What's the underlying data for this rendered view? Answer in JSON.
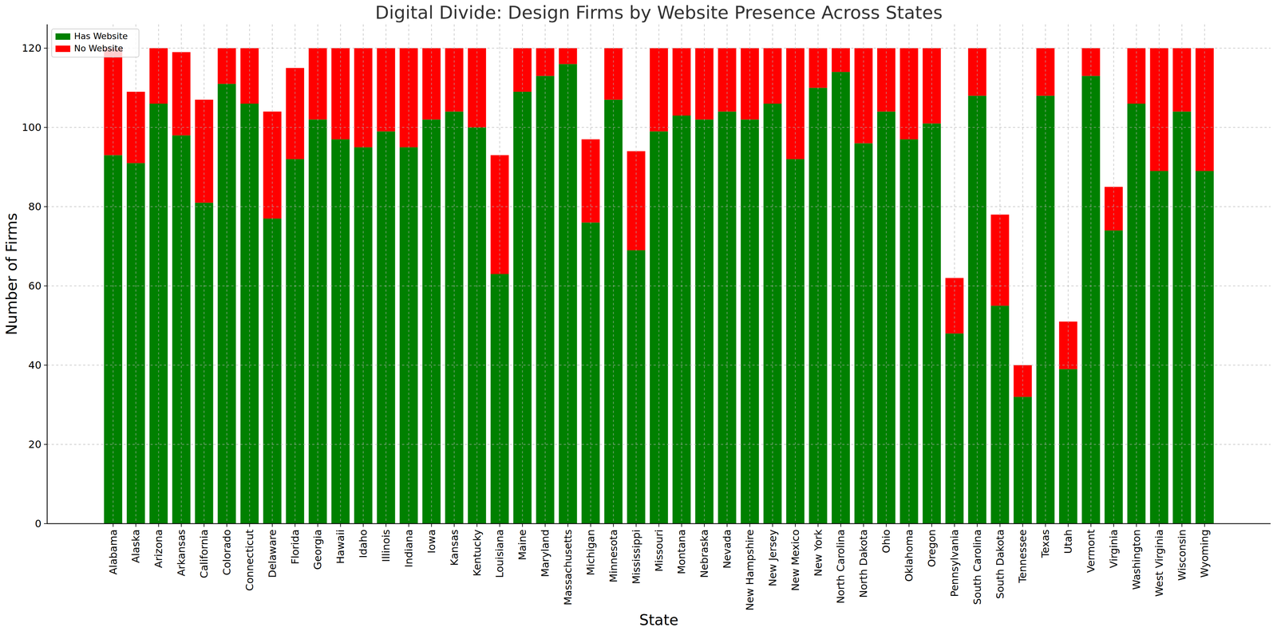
{
  "chart_data": {
    "type": "bar",
    "title": "Digital Divide: Design Firms by Website Presence Across States",
    "x_label": "State",
    "y_label": "Number of Firms",
    "stacked": true,
    "grid": true,
    "legend": "upper left",
    "ylim": [
      0,
      126
    ],
    "yticks": [
      0,
      20,
      40,
      60,
      80,
      100,
      120
    ],
    "categories": [
      "Alabama",
      "Alaska",
      "Arizona",
      "Arkansas",
      "California",
      "Colorado",
      "Connecticut",
      "Delaware",
      "Florida",
      "Georgia",
      "Hawaii",
      "Idaho",
      "Illinois",
      "Indiana",
      "Iowa",
      "Kansas",
      "Kentucky",
      "Louisiana",
      "Maine",
      "Maryland",
      "Massachusetts",
      "Michigan",
      "Minnesota",
      "Mississippi",
      "Missouri",
      "Montana",
      "Nebraska",
      "Nevada",
      "New Hampshire",
      "New Jersey",
      "New Mexico",
      "New York",
      "North Carolina",
      "North Dakota",
      "Ohio",
      "Oklahoma",
      "Oregon",
      "Pennsylvania",
      "South Carolina",
      "South Dakota",
      "Tennessee",
      "Texas",
      "Utah",
      "Vermont",
      "Virginia",
      "Washington",
      "West Virginia",
      "Wisconsin",
      "Wyoming"
    ],
    "series": [
      {
        "name": "Has Website",
        "color": "#008000",
        "values": [
          93,
          91,
          106,
          98,
          81,
          111,
          106,
          77,
          92,
          102,
          97,
          95,
          99,
          95,
          102,
          104,
          100,
          63,
          109,
          113,
          116,
          76,
          107,
          69,
          99,
          103,
          102,
          104,
          102,
          106,
          92,
          110,
          114,
          96,
          104,
          97,
          101,
          48,
          108,
          55,
          32,
          108,
          39,
          113,
          74,
          106,
          89,
          104,
          89
        ]
      },
      {
        "name": "No Website",
        "color": "#ff0000",
        "values": [
          27,
          18,
          14,
          21,
          26,
          9,
          14,
          27,
          23,
          18,
          23,
          25,
          21,
          25,
          18,
          16,
          20,
          30,
          11,
          7,
          4,
          21,
          13,
          25,
          21,
          17,
          18,
          16,
          18,
          14,
          28,
          10,
          6,
          24,
          16,
          23,
          19,
          14,
          12,
          23,
          8,
          12,
          12,
          7,
          11,
          14,
          31,
          16,
          31
        ]
      }
    ]
  }
}
